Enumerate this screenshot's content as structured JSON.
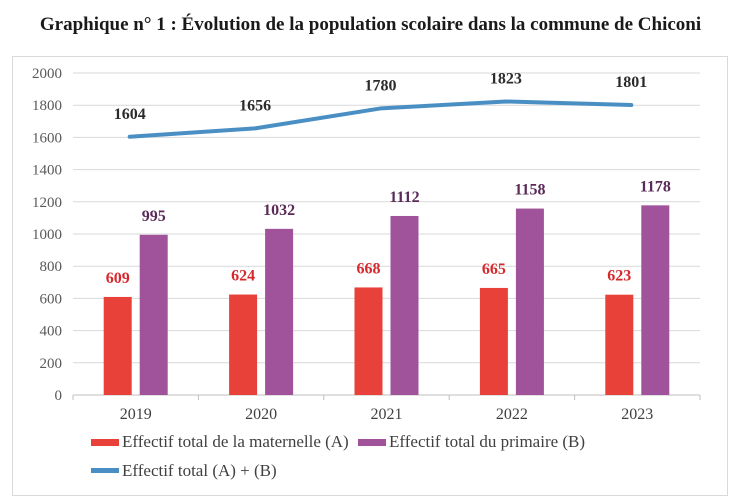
{
  "title": "Graphique n° 1 : Évolution de la population scolaire dans la commune de Chiconi",
  "colors": {
    "maternelle": "#e8413a",
    "primaire": "#a0529b",
    "total": "#4a8fc4",
    "label_maternelle": "#d6282c",
    "label_primaire": "#5a2a58",
    "label_total": "#2b2b2b",
    "grid": "#d9d9d9"
  },
  "chart_data": {
    "type": "bar",
    "title": "Graphique n° 1 : Évolution de la population scolaire dans la commune de Chiconi",
    "xlabel": "",
    "ylabel": "",
    "categories": [
      "2019",
      "2020",
      "2021",
      "2022",
      "2023"
    ],
    "ylim": [
      0,
      2000
    ],
    "yticks": [
      0,
      200,
      400,
      600,
      800,
      1000,
      1200,
      1400,
      1600,
      1800,
      2000
    ],
    "grid": true,
    "legend_position": "bottom",
    "series": [
      {
        "name": "Effectif total de la maternelle (A)",
        "type": "bar",
        "values": [
          609,
          624,
          668,
          665,
          623
        ]
      },
      {
        "name": "Effectif total du primaire (B)",
        "type": "bar",
        "values": [
          995,
          1032,
          1112,
          1158,
          1178
        ]
      },
      {
        "name": "Effectif total  (A) + (B)",
        "type": "line",
        "values": [
          1604,
          1656,
          1780,
          1823,
          1801
        ]
      }
    ]
  }
}
